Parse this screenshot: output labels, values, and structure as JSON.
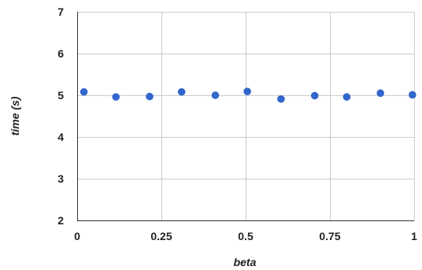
{
  "chart_data": {
    "type": "scatter",
    "title": "",
    "xlabel": "beta",
    "ylabel": "time (s)",
    "xlim": [
      0,
      1
    ],
    "ylim": [
      2,
      7
    ],
    "x_ticks": [
      0,
      0.25,
      0.5,
      0.75,
      1
    ],
    "x_tick_labels": [
      "0",
      "0.25",
      "0.5",
      "0.75",
      "1"
    ],
    "y_ticks": [
      2,
      3,
      4,
      5,
      6,
      7
    ],
    "y_tick_labels": [
      "2",
      "3",
      "4",
      "5",
      "6",
      "7"
    ],
    "grid": true,
    "legend": "none",
    "series": [
      {
        "color": "#3366cc",
        "points": [
          {
            "x": 0.02,
            "y": 5.08
          },
          {
            "x": 0.115,
            "y": 4.96
          },
          {
            "x": 0.215,
            "y": 4.97
          },
          {
            "x": 0.31,
            "y": 5.08
          },
          {
            "x": 0.41,
            "y": 5.0
          },
          {
            "x": 0.505,
            "y": 5.09
          },
          {
            "x": 0.605,
            "y": 4.91
          },
          {
            "x": 0.705,
            "y": 4.99
          },
          {
            "x": 0.8,
            "y": 4.96
          },
          {
            "x": 0.9,
            "y": 5.05
          },
          {
            "x": 0.995,
            "y": 5.01
          }
        ]
      }
    ]
  }
}
